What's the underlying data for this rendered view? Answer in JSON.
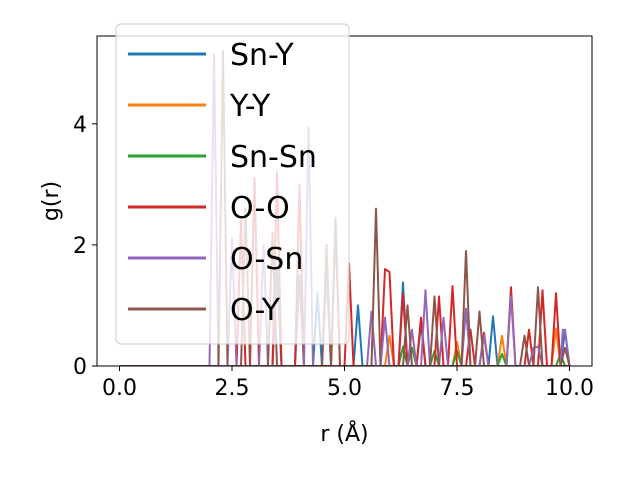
{
  "chart_data": {
    "type": "line",
    "title": "",
    "xlabel": "r (Å)",
    "ylabel": "g(r)",
    "xlim": [
      -0.5,
      10.5
    ],
    "ylim": [
      0,
      5.45
    ],
    "xticks": [
      0.0,
      2.5,
      5.0,
      7.5,
      10.0
    ],
    "xtick_labels": [
      "0.0",
      "2.5",
      "5.0",
      "7.5",
      "10.0"
    ],
    "yticks": [
      0,
      2,
      4
    ],
    "ytick_labels": [
      "0",
      "2",
      "4"
    ],
    "grid": false,
    "legend_position": "upper-left",
    "series": [
      {
        "name": "Sn-Y",
        "color": "#1f77b4",
        "points": [
          [
            0,
            0
          ],
          [
            3.4,
            0
          ],
          [
            3.5,
            1.6
          ],
          [
            3.6,
            0
          ],
          [
            3.9,
            0
          ],
          [
            4.0,
            1.5
          ],
          [
            4.1,
            0
          ],
          [
            4.3,
            0
          ],
          [
            4.4,
            1.2
          ],
          [
            4.5,
            0
          ],
          [
            5.2,
            0
          ],
          [
            5.3,
            1.0
          ],
          [
            5.4,
            0
          ],
          [
            6.2,
            0
          ],
          [
            6.3,
            1.38
          ],
          [
            6.4,
            0
          ],
          [
            6.6,
            0
          ],
          [
            6.7,
            0.7
          ],
          [
            6.8,
            0
          ],
          [
            8.2,
            0
          ],
          [
            8.3,
            0.82
          ],
          [
            8.4,
            0
          ],
          [
            9.8,
            0
          ],
          [
            9.9,
            0.6
          ],
          [
            10,
            0
          ]
        ]
      },
      {
        "name": "Y-Y",
        "color": "#ff7f0e",
        "points": [
          [
            0,
            0
          ],
          [
            5.9,
            0
          ],
          [
            6.0,
            0.5
          ],
          [
            6.1,
            0
          ],
          [
            7.4,
            0
          ],
          [
            7.5,
            0.4
          ],
          [
            7.6,
            0
          ],
          [
            8.4,
            0
          ],
          [
            8.5,
            0.5
          ],
          [
            8.6,
            0
          ],
          [
            9.6,
            0
          ],
          [
            9.7,
            0.62
          ],
          [
            9.8,
            0
          ],
          [
            10,
            0
          ]
        ]
      },
      {
        "name": "Sn-Sn",
        "color": "#2ca02c",
        "points": [
          [
            0,
            0
          ],
          [
            6.2,
            0
          ],
          [
            6.3,
            0.32
          ],
          [
            6.4,
            0
          ],
          [
            6.5,
            0.3
          ],
          [
            6.6,
            0
          ],
          [
            6.9,
            0
          ],
          [
            7.0,
            0.25
          ],
          [
            7.1,
            0
          ],
          [
            7.4,
            0
          ],
          [
            7.5,
            0.25
          ],
          [
            7.6,
            0
          ],
          [
            8.4,
            0
          ],
          [
            8.5,
            0.2
          ],
          [
            8.6,
            0
          ],
          [
            9.7,
            0
          ],
          [
            9.8,
            0.2
          ],
          [
            9.9,
            0
          ],
          [
            10,
            0
          ]
        ]
      },
      {
        "name": "O-O",
        "color": "#d62728",
        "points": [
          [
            0,
            0
          ],
          [
            2.6,
            0
          ],
          [
            2.7,
            2.4
          ],
          [
            2.8,
            0
          ],
          [
            2.9,
            0
          ],
          [
            3.0,
            3.1
          ],
          [
            3.1,
            0
          ],
          [
            3.4,
            0
          ],
          [
            3.5,
            3.2
          ],
          [
            3.6,
            0
          ],
          [
            3.9,
            0
          ],
          [
            4.0,
            3.0
          ],
          [
            4.1,
            0
          ],
          [
            4.7,
            0
          ],
          [
            4.8,
            2.3
          ],
          [
            4.9,
            0
          ],
          [
            5.0,
            0
          ],
          [
            5.1,
            1.7
          ],
          [
            5.2,
            0
          ],
          [
            5.8,
            0
          ],
          [
            5.9,
            1.6
          ],
          [
            6.0,
            1.55
          ],
          [
            6.1,
            0
          ],
          [
            6.2,
            0
          ],
          [
            6.3,
            1.2
          ],
          [
            6.4,
            0
          ],
          [
            6.6,
            0
          ],
          [
            6.7,
            0.8
          ],
          [
            6.8,
            0
          ],
          [
            7.0,
            0
          ],
          [
            7.1,
            1.15
          ],
          [
            7.2,
            0
          ],
          [
            7.3,
            0
          ],
          [
            7.4,
            1.32
          ],
          [
            7.5,
            0
          ],
          [
            7.7,
            0
          ],
          [
            7.8,
            0.6
          ],
          [
            7.9,
            0
          ],
          [
            8.0,
            0
          ],
          [
            8.1,
            0.55
          ],
          [
            8.2,
            0
          ],
          [
            8.6,
            0
          ],
          [
            8.7,
            1.3
          ],
          [
            8.8,
            0
          ],
          [
            9.0,
            0
          ],
          [
            9.1,
            0.6
          ],
          [
            9.2,
            0
          ],
          [
            9.3,
            0
          ],
          [
            9.4,
            1.25
          ],
          [
            9.5,
            0
          ],
          [
            9.6,
            0
          ],
          [
            9.7,
            1.2
          ],
          [
            9.8,
            0
          ],
          [
            10,
            0
          ]
        ]
      },
      {
        "name": "O-Sn",
        "color": "#9467bd",
        "points": [
          [
            0,
            0
          ],
          [
            2.0,
            0
          ],
          [
            2.1,
            5.15
          ],
          [
            2.2,
            0
          ],
          [
            2.4,
            0
          ],
          [
            2.5,
            2.1
          ],
          [
            2.6,
            0
          ],
          [
            3.1,
            0
          ],
          [
            3.2,
            2.0
          ],
          [
            3.3,
            0
          ],
          [
            4.1,
            0
          ],
          [
            4.2,
            3.95
          ],
          [
            4.3,
            0
          ],
          [
            4.5,
            0
          ],
          [
            4.6,
            1.5
          ],
          [
            4.7,
            0
          ],
          [
            5.5,
            0
          ],
          [
            5.6,
            0.9
          ],
          [
            5.7,
            0
          ],
          [
            5.8,
            0
          ],
          [
            5.9,
            0.8
          ],
          [
            6.0,
            0
          ],
          [
            6.4,
            0
          ],
          [
            6.5,
            0.6
          ],
          [
            6.6,
            0
          ],
          [
            6.7,
            0
          ],
          [
            6.8,
            1.25
          ],
          [
            6.9,
            0
          ],
          [
            7.1,
            0
          ],
          [
            7.2,
            0.8
          ],
          [
            7.3,
            0
          ],
          [
            7.6,
            0
          ],
          [
            7.7,
            0.95
          ],
          [
            7.8,
            0
          ],
          [
            8.0,
            0
          ],
          [
            8.1,
            0.5
          ],
          [
            8.2,
            0
          ],
          [
            8.6,
            0
          ],
          [
            8.7,
            1.15
          ],
          [
            8.8,
            0
          ],
          [
            9.1,
            0
          ],
          [
            9.2,
            0.3
          ],
          [
            9.3,
            0.32
          ],
          [
            9.4,
            0
          ],
          [
            9.8,
            0
          ],
          [
            9.85,
            0.6
          ],
          [
            9.9,
            0.58
          ],
          [
            10,
            0
          ]
        ]
      },
      {
        "name": "O-Y",
        "color": "#8c564b",
        "points": [
          [
            0,
            0
          ],
          [
            2.2,
            0
          ],
          [
            2.3,
            5.2
          ],
          [
            2.4,
            0
          ],
          [
            2.7,
            0
          ],
          [
            2.8,
            2.6
          ],
          [
            2.9,
            0
          ],
          [
            3.3,
            0
          ],
          [
            3.4,
            2.2
          ],
          [
            3.5,
            0
          ],
          [
            4.5,
            0
          ],
          [
            4.6,
            2.0
          ],
          [
            4.7,
            0
          ],
          [
            4.8,
            2.45
          ],
          [
            4.9,
            0
          ],
          [
            5.6,
            0
          ],
          [
            5.7,
            2.6
          ],
          [
            5.8,
            0
          ],
          [
            6.3,
            0
          ],
          [
            6.4,
            1.0
          ],
          [
            6.5,
            0
          ],
          [
            6.9,
            0
          ],
          [
            7.0,
            1.15
          ],
          [
            7.1,
            0
          ],
          [
            7.6,
            0
          ],
          [
            7.7,
            1.9
          ],
          [
            7.8,
            0
          ],
          [
            7.9,
            0
          ],
          [
            8.0,
            0.9
          ],
          [
            8.1,
            0
          ],
          [
            8.9,
            0
          ],
          [
            9.0,
            0.5
          ],
          [
            9.1,
            0
          ],
          [
            9.2,
            0
          ],
          [
            9.3,
            1.3
          ],
          [
            9.4,
            0
          ],
          [
            9.8,
            0
          ],
          [
            9.9,
            0.3
          ],
          [
            10,
            0
          ]
        ]
      }
    ]
  }
}
